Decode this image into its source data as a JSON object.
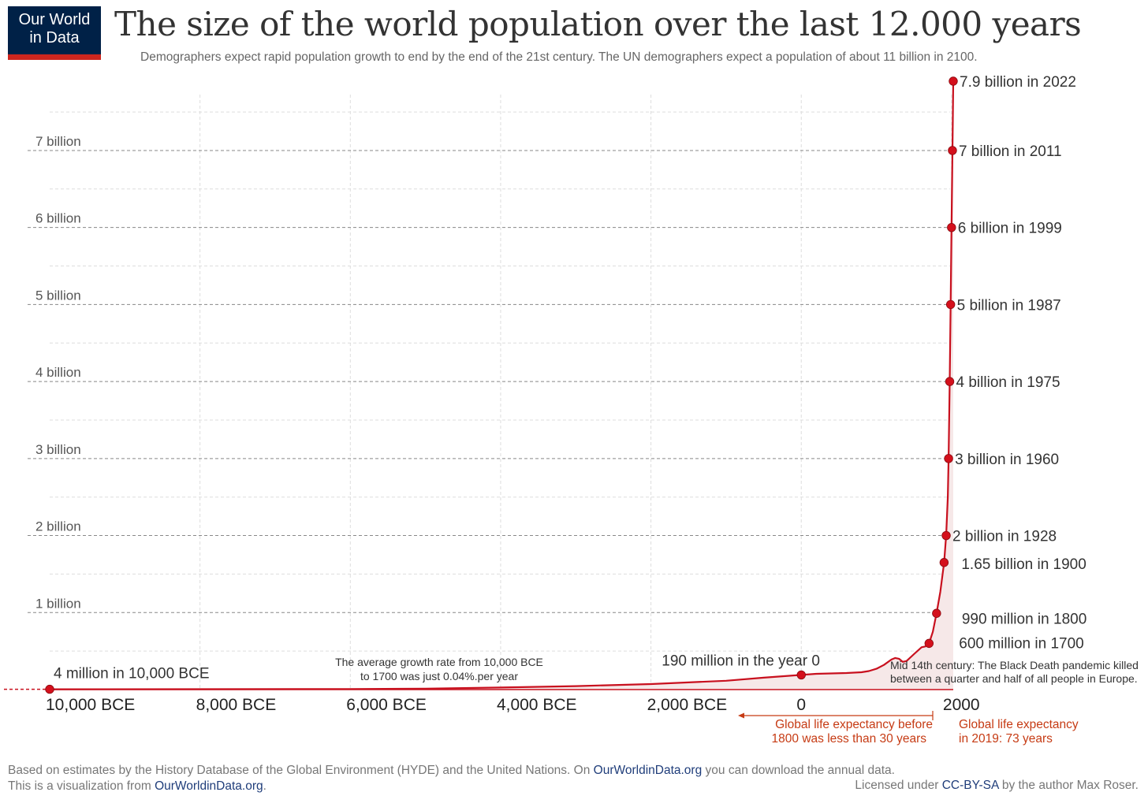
{
  "logo": {
    "line1": "Our World",
    "line2": "in Data"
  },
  "title": "The size of the world population over the last 12.000 years",
  "subtitle": "Demographers expect rapid population growth to end by the end of the 21st century. The UN demographers expect a population of about 11 billion in 2100.",
  "colors": {
    "line": "#c8101e",
    "dot": "#d4101c",
    "area": "#f6e8e8",
    "annotation": "#c63b14",
    "grid": "#999999",
    "brand": "#002147"
  },
  "chart_data": {
    "type": "area",
    "xlim": [
      -10000,
      2022
    ],
    "ylim": [
      0,
      7.9
    ],
    "y_unit": "billion",
    "y_ticks": [
      {
        "value": 1,
        "label": "1 billion"
      },
      {
        "value": 2,
        "label": "2 billion"
      },
      {
        "value": 3,
        "label": "3 billion"
      },
      {
        "value": 4,
        "label": "4 billion"
      },
      {
        "value": 5,
        "label": "5 billion"
      },
      {
        "value": 6,
        "label": "6 billion"
      },
      {
        "value": 7,
        "label": "7 billion"
      }
    ],
    "x_ticks": [
      {
        "value": -10000,
        "label": "10,000 BCE"
      },
      {
        "value": -8000,
        "label": "8,000 BCE"
      },
      {
        "value": -6000,
        "label": "6,000 BCE"
      },
      {
        "value": -4000,
        "label": "4,000 BCE"
      },
      {
        "value": -2000,
        "label": "2,000 BCE"
      },
      {
        "value": 0,
        "label": "0"
      },
      {
        "value": 2000,
        "label": "2000"
      }
    ],
    "series": [
      {
        "x": [
          -10000,
          -8000,
          -6000,
          -5000,
          -4000,
          -3000,
          -2000,
          -1000,
          -500,
          0,
          200,
          400,
          600,
          800,
          900,
          1000,
          1100,
          1200,
          1250,
          1300,
          1350,
          1400,
          1500,
          1600,
          1650,
          1700,
          1750,
          1800,
          1850,
          1900,
          1928,
          1950,
          1960,
          1975,
          1987,
          1999,
          2011,
          2022
        ],
        "y": [
          0.004,
          0.005,
          0.007,
          0.012,
          0.027,
          0.045,
          0.072,
          0.115,
          0.155,
          0.19,
          0.205,
          0.21,
          0.215,
          0.225,
          0.24,
          0.27,
          0.32,
          0.39,
          0.41,
          0.4,
          0.36,
          0.37,
          0.46,
          0.55,
          0.56,
          0.6,
          0.75,
          0.99,
          1.27,
          1.65,
          2.0,
          2.5,
          3.0,
          4.0,
          5.0,
          6.0,
          7.0,
          7.9
        ]
      }
    ],
    "points": [
      {
        "x": -10000,
        "y": 0.004,
        "label": "4 million in 10,000 BCE"
      },
      {
        "x": 0,
        "y": 0.19,
        "label": "190 million in the year 0"
      },
      {
        "x": 1700,
        "y": 0.6,
        "label": "600 million in 1700"
      },
      {
        "x": 1800,
        "y": 0.99,
        "label": "990 million in 1800"
      },
      {
        "x": 1900,
        "y": 1.65,
        "label": "1.65 billion in 1900"
      },
      {
        "x": 1928,
        "y": 2.0,
        "label": "2 billion in 1928"
      },
      {
        "x": 1960,
        "y": 3.0,
        "label": "3 billion in 1960"
      },
      {
        "x": 1975,
        "y": 4.0,
        "label": "4 billion in 1975"
      },
      {
        "x": 1987,
        "y": 5.0,
        "label": "5 billion in 1987"
      },
      {
        "x": 1999,
        "y": 6.0,
        "label": "6 billion in 1999"
      },
      {
        "x": 2011,
        "y": 7.0,
        "label": "7 billion in 2011"
      },
      {
        "x": 2022,
        "y": 7.9,
        "label": "7.9 billion in 2022"
      }
    ],
    "annotations": {
      "growth_rate": [
        "The average growth rate from 10,000 BCE",
        "to 1700 was just  0.04%.per year"
      ],
      "black_death": [
        "Mid 14th century: The Black Death pandemic killed",
        "between a quarter and half of all people in Europe."
      ],
      "life_expectancy_before": [
        "Global life expectancy before",
        "1800 was less than 30 years"
      ],
      "life_expectancy_2019": [
        "Global life expectancy",
        "in 2019: 73 years"
      ]
    }
  },
  "footer": {
    "source_line1_prefix": "Based on estimates by the History Database of the Global Environment (HYDE) and the United Nations. On ",
    "source_link1": "OurWorldinData.org",
    "source_line1_suffix": " you can download the annual data.",
    "source_line2_prefix": "This is a visualization from ",
    "source_link2": "OurWorldinData.org",
    "source_line2_suffix": ".",
    "license_prefix": "Licensed under ",
    "license_link": "CC-BY-SA",
    "license_suffix": " by the author Max Roser."
  }
}
